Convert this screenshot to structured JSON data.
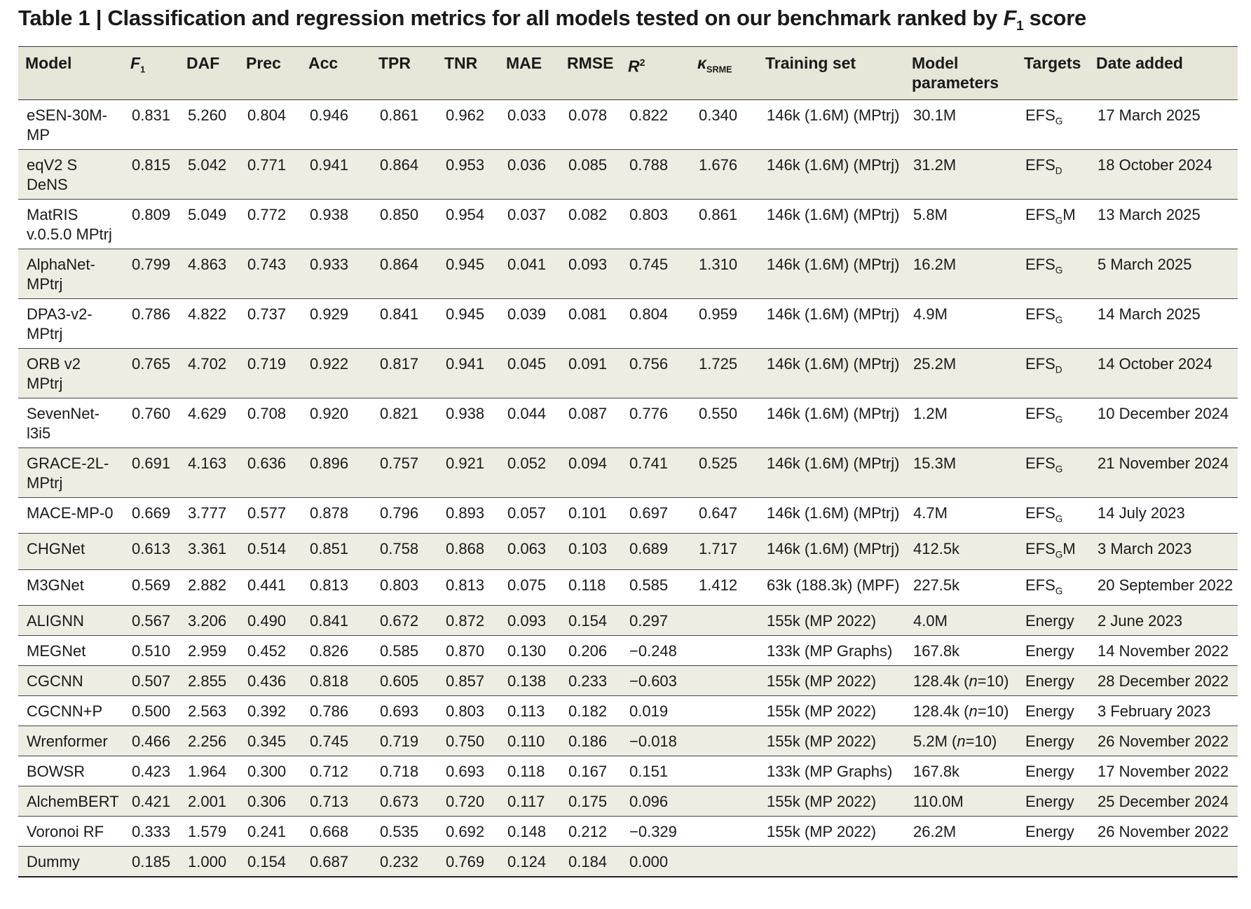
{
  "title": {
    "prefix": "Table 1 | Classification and regression metrics for all models tested on our benchmark ranked by ",
    "f_letter": "F",
    "f_sub": "1",
    "suffix": " score"
  },
  "headers": {
    "model": "Model",
    "f1_letter": "F",
    "f1_sub": "1",
    "daf": "DAF",
    "prec": "Prec",
    "acc": "Acc",
    "tpr": "TPR",
    "tnr": "TNR",
    "mae": "MAE",
    "rmse": "RMSE",
    "r2_letter": "R",
    "r2_sup": "2",
    "kappa_letter": "κ",
    "kappa_sub": "SRME",
    "training_set": "Training set",
    "model_parameters": "Model parameters",
    "targets": "Targets",
    "date_added": "Date added"
  },
  "rows": [
    {
      "model": "eSEN-30M-MP",
      "f1": "0.831",
      "daf": "5.260",
      "prec": "0.804",
      "acc": "0.946",
      "tpr": "0.861",
      "tnr": "0.962",
      "mae": "0.033",
      "rmse": "0.078",
      "r2": "0.822",
      "kappa": "0.340",
      "training_set": "146k (1.6M) (MPtrj)",
      "params": "30.1M",
      "params_n": "",
      "targets_main": "EFS",
      "targets_sub": "G",
      "targets_suffix": "",
      "date": "17 March 2025"
    },
    {
      "model": "eqV2 S DeNS",
      "f1": "0.815",
      "daf": "5.042",
      "prec": "0.771",
      "acc": "0.941",
      "tpr": "0.864",
      "tnr": "0.953",
      "mae": "0.036",
      "rmse": "0.085",
      "r2": "0.788",
      "kappa": "1.676",
      "training_set": "146k (1.6M) (MPtrj)",
      "params": "31.2M",
      "params_n": "",
      "targets_main": "EFS",
      "targets_sub": "D",
      "targets_suffix": "",
      "date": "18 October 2024"
    },
    {
      "model": "MatRIS v.0.5.0 MPtrj",
      "f1": "0.809",
      "daf": "5.049",
      "prec": "0.772",
      "acc": "0.938",
      "tpr": "0.850",
      "tnr": "0.954",
      "mae": "0.037",
      "rmse": "0.082",
      "r2": "0.803",
      "kappa": "0.861",
      "training_set": "146k (1.6M) (MPtrj)",
      "params": "5.8M",
      "params_n": "",
      "targets_main": "EFS",
      "targets_sub": "G",
      "targets_suffix": "M",
      "date": "13 March 2025"
    },
    {
      "model": "AlphaNet-MPtrj",
      "f1": "0.799",
      "daf": "4.863",
      "prec": "0.743",
      "acc": "0.933",
      "tpr": "0.864",
      "tnr": "0.945",
      "mae": "0.041",
      "rmse": "0.093",
      "r2": "0.745",
      "kappa": "1.310",
      "training_set": "146k (1.6M) (MPtrj)",
      "params": "16.2M",
      "params_n": "",
      "targets_main": "EFS",
      "targets_sub": "G",
      "targets_suffix": "",
      "date": "5 March 2025"
    },
    {
      "model": "DPA3-v2-MPtrj",
      "f1": "0.786",
      "daf": "4.822",
      "prec": "0.737",
      "acc": "0.929",
      "tpr": "0.841",
      "tnr": "0.945",
      "mae": "0.039",
      "rmse": "0.081",
      "r2": "0.804",
      "kappa": "0.959",
      "training_set": "146k (1.6M) (MPtrj)",
      "params": "4.9M",
      "params_n": "",
      "targets_main": "EFS",
      "targets_sub": "G",
      "targets_suffix": "",
      "date": "14 March 2025"
    },
    {
      "model": "ORB v2 MPtrj",
      "f1": "0.765",
      "daf": "4.702",
      "prec": "0.719",
      "acc": "0.922",
      "tpr": "0.817",
      "tnr": "0.941",
      "mae": "0.045",
      "rmse": "0.091",
      "r2": "0.756",
      "kappa": "1.725",
      "training_set": "146k (1.6M) (MPtrj)",
      "params": "25.2M",
      "params_n": "",
      "targets_main": "EFS",
      "targets_sub": "D",
      "targets_suffix": "",
      "date": "14 October 2024"
    },
    {
      "model": "SevenNet-l3i5",
      "f1": "0.760",
      "daf": "4.629",
      "prec": "0.708",
      "acc": "0.920",
      "tpr": "0.821",
      "tnr": "0.938",
      "mae": "0.044",
      "rmse": "0.087",
      "r2": "0.776",
      "kappa": "0.550",
      "training_set": "146k (1.6M) (MPtrj)",
      "params": "1.2M",
      "params_n": "",
      "targets_main": "EFS",
      "targets_sub": "G",
      "targets_suffix": "",
      "date": "10 December 2024"
    },
    {
      "model": "GRACE-2L-MPtrj",
      "f1": "0.691",
      "daf": "4.163",
      "prec": "0.636",
      "acc": "0.896",
      "tpr": "0.757",
      "tnr": "0.921",
      "mae": "0.052",
      "rmse": "0.094",
      "r2": "0.741",
      "kappa": "0.525",
      "training_set": "146k (1.6M) (MPtrj)",
      "params": "15.3M",
      "params_n": "",
      "targets_main": "EFS",
      "targets_sub": "G",
      "targets_suffix": "",
      "date": "21 November 2024"
    },
    {
      "model": "MACE-MP-0",
      "f1": "0.669",
      "daf": "3.777",
      "prec": "0.577",
      "acc": "0.878",
      "tpr": "0.796",
      "tnr": "0.893",
      "mae": "0.057",
      "rmse": "0.101",
      "r2": "0.697",
      "kappa": "0.647",
      "training_set": "146k (1.6M) (MPtrj)",
      "params": "4.7M",
      "params_n": "",
      "targets_main": "EFS",
      "targets_sub": "G",
      "targets_suffix": "",
      "date": "14 July 2023"
    },
    {
      "model": "CHGNet",
      "f1": "0.613",
      "daf": "3.361",
      "prec": "0.514",
      "acc": "0.851",
      "tpr": "0.758",
      "tnr": "0.868",
      "mae": "0.063",
      "rmse": "0.103",
      "r2": "0.689",
      "kappa": "1.717",
      "training_set": "146k (1.6M) (MPtrj)",
      "params": "412.5k",
      "params_n": "",
      "targets_main": "EFS",
      "targets_sub": "G",
      "targets_suffix": "M",
      "date": "3 March 2023"
    },
    {
      "model": "M3GNet",
      "f1": "0.569",
      "daf": "2.882",
      "prec": "0.441",
      "acc": "0.813",
      "tpr": "0.803",
      "tnr": "0.813",
      "mae": "0.075",
      "rmse": "0.118",
      "r2": "0.585",
      "kappa": "1.412",
      "training_set": "63k (188.3k) (MPF)",
      "params": "227.5k",
      "params_n": "",
      "targets_main": "EFS",
      "targets_sub": "G",
      "targets_suffix": "",
      "date": "20 September 2022"
    },
    {
      "model": "ALIGNN",
      "f1": "0.567",
      "daf": "3.206",
      "prec": "0.490",
      "acc": "0.841",
      "tpr": "0.672",
      "tnr": "0.872",
      "mae": "0.093",
      "rmse": "0.154",
      "r2": "0.297",
      "kappa": "",
      "training_set": "155k (MP 2022)",
      "params": "4.0M",
      "params_n": "",
      "targets_main": "Energy",
      "targets_sub": "",
      "targets_suffix": "",
      "date": "2 June 2023"
    },
    {
      "model": "MEGNet",
      "f1": "0.510",
      "daf": "2.959",
      "prec": "0.452",
      "acc": "0.826",
      "tpr": "0.585",
      "tnr": "0.870",
      "mae": "0.130",
      "rmse": "0.206",
      "r2": "−0.248",
      "kappa": "",
      "training_set": "133k (MP Graphs)",
      "params": "167.8k",
      "params_n": "",
      "targets_main": "Energy",
      "targets_sub": "",
      "targets_suffix": "",
      "date": "14 November 2022"
    },
    {
      "model": "CGCNN",
      "f1": "0.507",
      "daf": "2.855",
      "prec": "0.436",
      "acc": "0.818",
      "tpr": "0.605",
      "tnr": "0.857",
      "mae": "0.138",
      "rmse": "0.233",
      "r2": "−0.603",
      "kappa": "",
      "training_set": "155k (MP 2022)",
      "params": "128.4k",
      "params_n": "10",
      "targets_main": "Energy",
      "targets_sub": "",
      "targets_suffix": "",
      "date": "28 December 2022"
    },
    {
      "model": "CGCNN+P",
      "f1": "0.500",
      "daf": "2.563",
      "prec": "0.392",
      "acc": "0.786",
      "tpr": "0.693",
      "tnr": "0.803",
      "mae": "0.113",
      "rmse": "0.182",
      "r2": "0.019",
      "kappa": "",
      "training_set": "155k (MP 2022)",
      "params": "128.4k",
      "params_n": "10",
      "targets_main": "Energy",
      "targets_sub": "",
      "targets_suffix": "",
      "date": "3 February 2023"
    },
    {
      "model": "Wrenformer",
      "f1": "0.466",
      "daf": "2.256",
      "prec": "0.345",
      "acc": "0.745",
      "tpr": "0.719",
      "tnr": "0.750",
      "mae": "0.110",
      "rmse": "0.186",
      "r2": "−0.018",
      "kappa": "",
      "training_set": "155k (MP 2022)",
      "params": "5.2M",
      "params_n": "10",
      "targets_main": "Energy",
      "targets_sub": "",
      "targets_suffix": "",
      "date": "26 November 2022"
    },
    {
      "model": "BOWSR",
      "f1": "0.423",
      "daf": "1.964",
      "prec": "0.300",
      "acc": "0.712",
      "tpr": "0.718",
      "tnr": "0.693",
      "mae": "0.118",
      "rmse": "0.167",
      "r2": "0.151",
      "kappa": "",
      "training_set": "133k (MP Graphs)",
      "params": "167.8k",
      "params_n": "",
      "targets_main": "Energy",
      "targets_sub": "",
      "targets_suffix": "",
      "date": "17 November 2022"
    },
    {
      "model": "AlchemBERT",
      "f1": "0.421",
      "daf": "2.001",
      "prec": "0.306",
      "acc": "0.713",
      "tpr": "0.673",
      "tnr": "0.720",
      "mae": "0.117",
      "rmse": "0.175",
      "r2": "0.096",
      "kappa": "",
      "training_set": "155k (MP 2022)",
      "params": "110.0M",
      "params_n": "",
      "targets_main": "Energy",
      "targets_sub": "",
      "targets_suffix": "",
      "date": "25 December 2024"
    },
    {
      "model": "Voronoi RF",
      "f1": "0.333",
      "daf": "1.579",
      "prec": "0.241",
      "acc": "0.668",
      "tpr": "0.535",
      "tnr": "0.692",
      "mae": "0.148",
      "rmse": "0.212",
      "r2": "−0.329",
      "kappa": "",
      "training_set": "155k (MP 2022)",
      "params": "26.2M",
      "params_n": "",
      "targets_main": "Energy",
      "targets_sub": "",
      "targets_suffix": "",
      "date": "26 November 2022"
    },
    {
      "model": "Dummy",
      "f1": "0.185",
      "daf": "1.000",
      "prec": "0.154",
      "acc": "0.687",
      "tpr": "0.232",
      "tnr": "0.769",
      "mae": "0.124",
      "rmse": "0.184",
      "r2": "0.000",
      "kappa": "",
      "training_set": "",
      "params": "",
      "params_n": "",
      "targets_main": "",
      "targets_sub": "",
      "targets_suffix": "",
      "date": ""
    }
  ]
}
